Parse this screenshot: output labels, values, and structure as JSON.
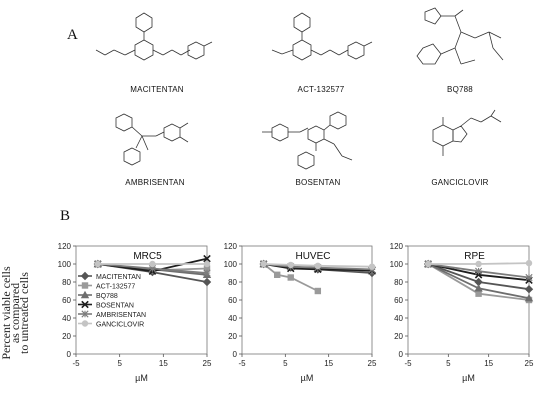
{
  "panel_labels": {
    "a": "A",
    "b": "B"
  },
  "compounds": [
    "MACITENTAN",
    "ACT-132577",
    "BQ788",
    "AMBRISENTAN",
    "BOSENTAN",
    "GANCICLOVIR"
  ],
  "y_axis_label_line1": "Percent viable cells",
  "y_axis_label_line2": "as compared",
  "y_axis_label_line3": "to untreated cells",
  "series_colors": {
    "MACITENTAN": "#555555",
    "ACT-132577": "#9a9a9a",
    "BQ788": "#6e6e6e",
    "BOSENTAN": "#1e1e1e",
    "AMBRISENTAN": "#7c7c7c",
    "GANCICLOVIR": "#c4c4c4"
  },
  "chart_data": [
    {
      "type": "line",
      "title": "MRC5",
      "xlabel": "µM",
      "xlim": [
        -5,
        25
      ],
      "ylim": [
        0,
        120
      ],
      "x_ticks": [
        -5,
        5,
        15,
        25
      ],
      "y_ticks": [
        0,
        20,
        40,
        60,
        80,
        100,
        120
      ],
      "legend": "inside-left",
      "series": [
        {
          "name": "MACITENTAN",
          "x": [
            0,
            12.5,
            25
          ],
          "y": [
            100,
            91,
            80
          ]
        },
        {
          "name": "ACT-132577",
          "x": [
            0,
            12.5,
            25
          ],
          "y": [
            100,
            93,
            95
          ]
        },
        {
          "name": "BQ788",
          "x": [
            0,
            12.5,
            25
          ],
          "y": [
            100,
            94,
            88
          ]
        },
        {
          "name": "BOSENTAN",
          "x": [
            0,
            12.5,
            25
          ],
          "y": [
            100,
            92,
            106
          ]
        },
        {
          "name": "AMBRISENTAN",
          "x": [
            0,
            12.5,
            25
          ],
          "y": [
            100,
            95,
            90
          ]
        },
        {
          "name": "GANCICLOVIR",
          "x": [
            0,
            12.5,
            25
          ],
          "y": [
            100,
            100,
            100
          ]
        }
      ]
    },
    {
      "type": "line",
      "title": "HUVEC",
      "xlabel": "µM",
      "xlim": [
        -5,
        25
      ],
      "ylim": [
        0,
        120
      ],
      "x_ticks": [
        -5,
        5,
        15,
        25
      ],
      "y_ticks": [
        0,
        20,
        40,
        60,
        80,
        100,
        120
      ],
      "series": [
        {
          "name": "MACITENTAN",
          "x": [
            0,
            6.25,
            12.5,
            25
          ],
          "y": [
            100,
            96,
            94,
            90
          ]
        },
        {
          "name": "ACT-132577",
          "x": [
            0,
            3.125,
            6.25,
            12.5
          ],
          "y": [
            100,
            88,
            85,
            70
          ]
        },
        {
          "name": "BQ788",
          "x": [
            0,
            6.25,
            12.5,
            25
          ],
          "y": [
            100,
            97,
            95,
            92
          ]
        },
        {
          "name": "BOSENTAN",
          "x": [
            0,
            6.25,
            12.5,
            25
          ],
          "y": [
            100,
            95,
            94,
            93
          ]
        },
        {
          "name": "AMBRISENTAN",
          "x": [
            0,
            6.25,
            12.5,
            25
          ],
          "y": [
            100,
            97,
            96,
            94
          ]
        },
        {
          "name": "GANCICLOVIR",
          "x": [
            0,
            6.25,
            12.5,
            25
          ],
          "y": [
            100,
            99,
            98,
            97
          ]
        }
      ]
    },
    {
      "type": "line",
      "title": "RPE",
      "xlabel": "µM",
      "xlim": [
        -5,
        25
      ],
      "ylim": [
        0,
        120
      ],
      "x_ticks": [
        -5,
        5,
        15,
        25
      ],
      "y_ticks": [
        0,
        20,
        40,
        60,
        80,
        100,
        120
      ],
      "series": [
        {
          "name": "MACITENTAN",
          "x": [
            0,
            12.5,
            25
          ],
          "y": [
            100,
            80,
            72
          ]
        },
        {
          "name": "ACT-132577",
          "x": [
            0,
            12.5,
            25
          ],
          "y": [
            100,
            67,
            60
          ]
        },
        {
          "name": "BQ788",
          "x": [
            0,
            12.5,
            25
          ],
          "y": [
            100,
            73,
            62
          ]
        },
        {
          "name": "BOSENTAN",
          "x": [
            0,
            12.5,
            25
          ],
          "y": [
            100,
            88,
            82
          ]
        },
        {
          "name": "AMBRISENTAN",
          "x": [
            0,
            12.5,
            25
          ],
          "y": [
            100,
            92,
            85
          ]
        },
        {
          "name": "GANCICLOVIR",
          "x": [
            0,
            12.5,
            25
          ],
          "y": [
            100,
            100,
            101
          ]
        }
      ]
    }
  ]
}
